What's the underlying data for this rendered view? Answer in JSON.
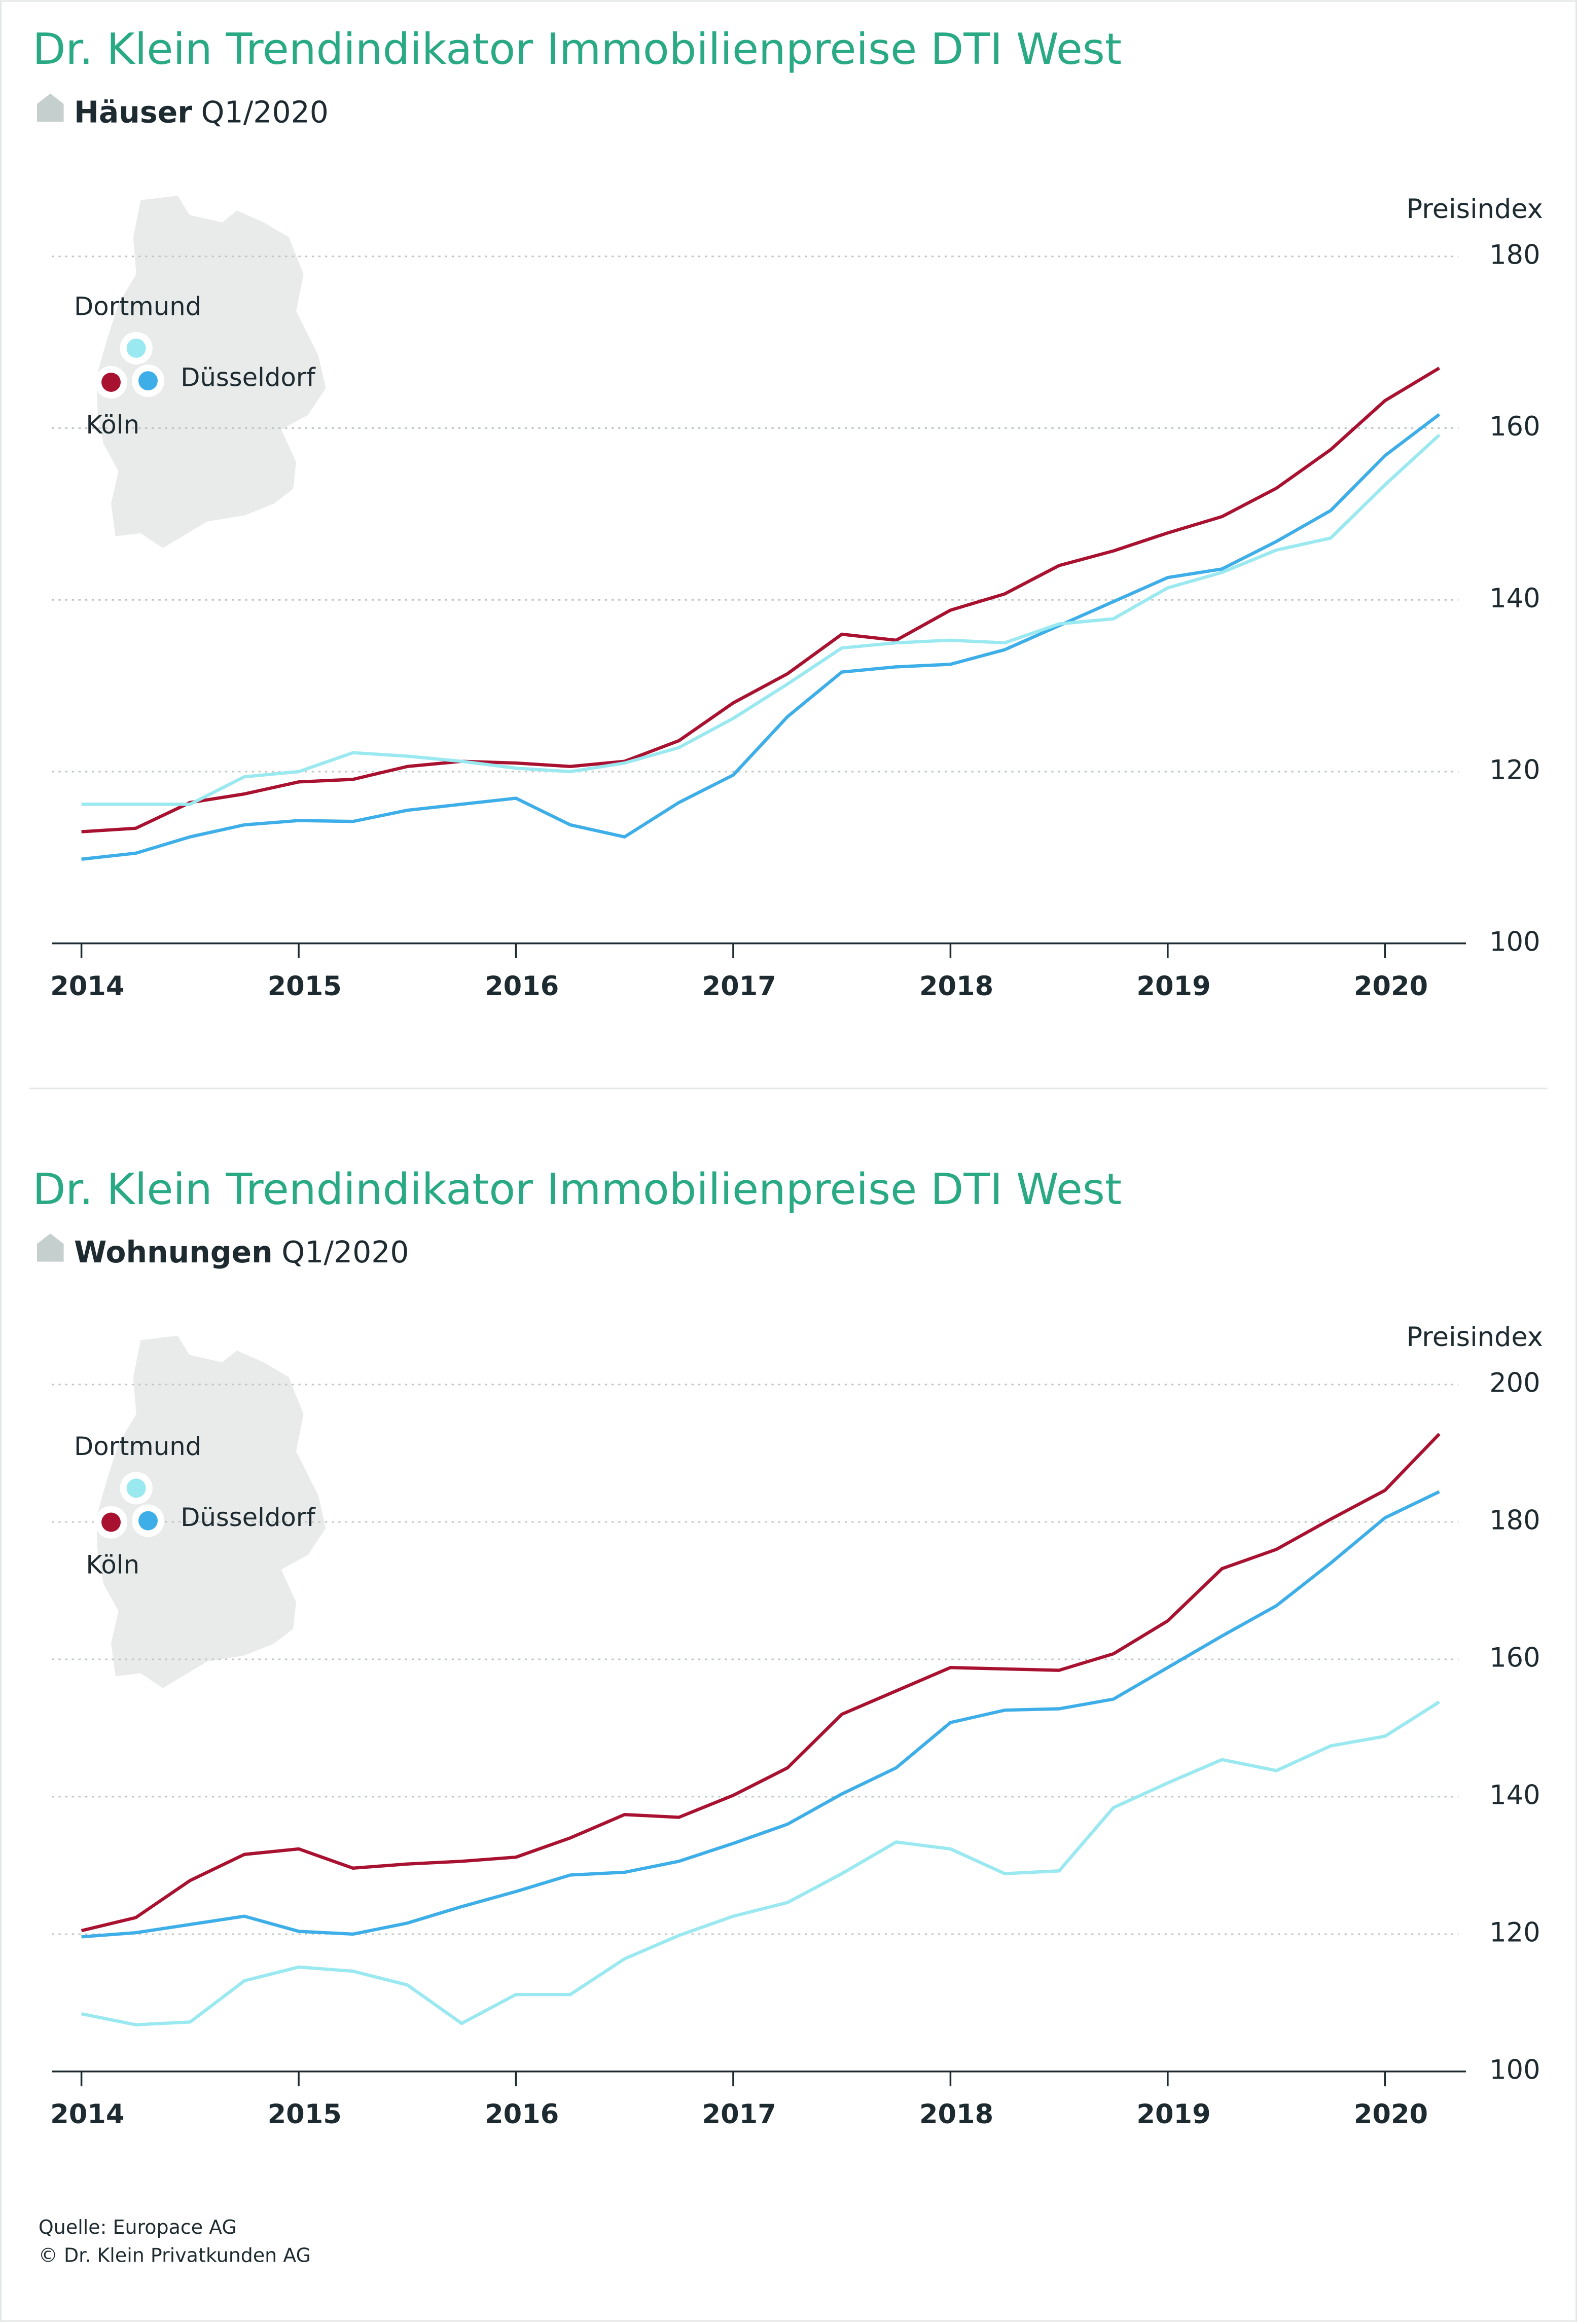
{
  "chart_data": [
    {
      "type": "line",
      "title": "Dr. Klein Trendindikator Immobilienpreise DTI West",
      "subtitle_bold": "Häuser",
      "subtitle": "Q1/2020",
      "y_label": "Preisindex",
      "x": [
        2014,
        2014.25,
        2014.5,
        2014.75,
        2015,
        2015.25,
        2015.5,
        2015.75,
        2016,
        2016.25,
        2016.5,
        2016.75,
        2017,
        2017.25,
        2017.5,
        2017.75,
        2018,
        2018.25,
        2018.5,
        2018.75,
        2019,
        2019.25,
        2019.5,
        2019.75,
        2020,
        2020.25
      ],
      "xlim": [
        2013.87,
        2020.37
      ],
      "xticks": [
        2014,
        2015,
        2016,
        2017,
        2018,
        2019,
        2020
      ],
      "ylim": [
        100,
        180
      ],
      "yticks": [
        100,
        120,
        140,
        160,
        180
      ],
      "grid": true,
      "series": [
        {
          "name": "Köln",
          "color": "#a8112f",
          "values": [
            113.0,
            113.4,
            116.4,
            117.4,
            118.8,
            119.1,
            120.6,
            121.2,
            121.0,
            120.6,
            121.2,
            123.6,
            128.0,
            131.4,
            136.0,
            135.3,
            138.8,
            140.7,
            144.0,
            145.7,
            147.8,
            149.7,
            153.0,
            157.5,
            163.2,
            167.0
          ]
        },
        {
          "name": "Düsseldorf",
          "color": "#3eaee8",
          "values": [
            109.8,
            110.5,
            112.4,
            113.8,
            114.3,
            114.2,
            115.5,
            116.2,
            116.9,
            113.8,
            112.4,
            116.4,
            119.6,
            126.4,
            131.6,
            132.2,
            132.5,
            134.2,
            137.0,
            139.8,
            142.6,
            143.6,
            146.8,
            150.4,
            156.8,
            161.6
          ]
        },
        {
          "name": "Dortmund",
          "color": "#9ae8f0",
          "values": [
            116.2,
            116.2,
            116.2,
            119.4,
            120.0,
            122.2,
            121.8,
            121.2,
            120.4,
            120.0,
            121.0,
            122.8,
            126.2,
            130.2,
            134.4,
            135.0,
            135.3,
            135.0,
            137.2,
            137.8,
            141.4,
            143.2,
            145.8,
            147.2,
            153.4,
            159.2
          ]
        }
      ]
    },
    {
      "type": "line",
      "title": "Dr. Klein Trendindikator Immobilienpreise DTI West",
      "subtitle_bold": "Wohnungen",
      "subtitle": "Q1/2020",
      "y_label": "Preisindex",
      "x": [
        2014,
        2014.25,
        2014.5,
        2014.75,
        2015,
        2015.25,
        2015.5,
        2015.75,
        2016,
        2016.25,
        2016.5,
        2016.75,
        2017,
        2017.25,
        2017.5,
        2017.75,
        2018,
        2018.25,
        2018.5,
        2018.75,
        2019,
        2019.25,
        2019.5,
        2019.75,
        2020,
        2020.25
      ],
      "xlim": [
        2013.87,
        2020.37
      ],
      "xticks": [
        2014,
        2015,
        2016,
        2017,
        2018,
        2019,
        2020
      ],
      "ylim": [
        100,
        200
      ],
      "yticks": [
        100,
        120,
        140,
        160,
        180,
        200
      ],
      "grid": true,
      "series": [
        {
          "name": "Köln",
          "color": "#a8112f",
          "values": [
            120.5,
            122.4,
            127.8,
            131.6,
            132.4,
            129.6,
            130.2,
            130.6,
            131.2,
            134.0,
            137.4,
            137.0,
            140.2,
            144.2,
            152.0,
            155.4,
            158.8,
            158.6,
            158.4,
            160.8,
            165.6,
            173.2,
            176.0,
            180.4,
            184.6,
            192.8
          ]
        },
        {
          "name": "Düsseldorf",
          "color": "#3eaee8",
          "values": [
            119.6,
            120.2,
            121.4,
            122.6,
            120.4,
            120.0,
            121.6,
            124.0,
            126.2,
            128.6,
            129.0,
            130.6,
            133.2,
            136.0,
            140.4,
            144.2,
            150.8,
            152.6,
            152.8,
            154.2,
            158.8,
            163.4,
            167.8,
            174.0,
            180.6,
            184.4
          ]
        },
        {
          "name": "Dortmund",
          "color": "#9ae8f0",
          "values": [
            108.4,
            106.8,
            107.2,
            113.2,
            115.2,
            114.6,
            112.6,
            107.0,
            111.2,
            111.2,
            116.4,
            119.8,
            122.6,
            124.6,
            128.8,
            133.4,
            132.4,
            128.8,
            129.2,
            138.4,
            142.0,
            145.4,
            143.8,
            147.4,
            148.8,
            153.8
          ]
        }
      ]
    }
  ],
  "footer": [
    "Quelle: Europace AG",
    "© Dr. Klein Privatkunden AG"
  ]
}
